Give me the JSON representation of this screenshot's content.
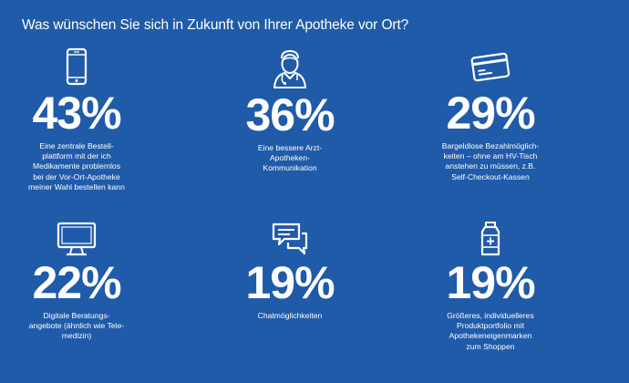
{
  "title": "Was wünschen Sie sich in Zukunft von Ihrer Apotheke vor Ort?",
  "colors": {
    "background": "#1f5ba8",
    "foreground": "#ffffff"
  },
  "chart_data": {
    "type": "table",
    "title": "Was wünschen Sie sich in Zukunft von Ihrer Apotheke vor Ort?",
    "unit": "%",
    "items": [
      {
        "icon": "smartphone-icon",
        "value": 43,
        "label": "43%",
        "description": "Eine zentrale Bestell-\nplattform mit der ich\nMedikamente problemlos\nbei der Vor-Ort-Apotheke\nmeiner Wahl bestellen kann"
      },
      {
        "icon": "doctor-icon",
        "value": 36,
        "label": "36%",
        "description": "Eine bessere Arzt-\nApotheken-\nKommunikation"
      },
      {
        "icon": "credit-card-icon",
        "value": 29,
        "label": "29%",
        "description": "Bargeldlose Bezahlmöglich-\nkeiten – ohne am HV-Tisch\nanstehen zu müssen, z.B.\nSelf-Checkout-Kassen"
      },
      {
        "icon": "monitor-icon",
        "value": 22,
        "label": "22%",
        "description": "Digitale Beratungs-\nangebote (ähnlich wie Tele-\nmedizin)"
      },
      {
        "icon": "chat-bubbles-icon",
        "value": 19,
        "label": "19%",
        "description": "Chatmöglichkeiten"
      },
      {
        "icon": "medicine-bottle-icon",
        "value": 19,
        "label": "19%",
        "description": "Größeres, individuelleres\nProduktportfolio mit\nApothekeneigenmarken\nzum Shoppen"
      }
    ]
  }
}
